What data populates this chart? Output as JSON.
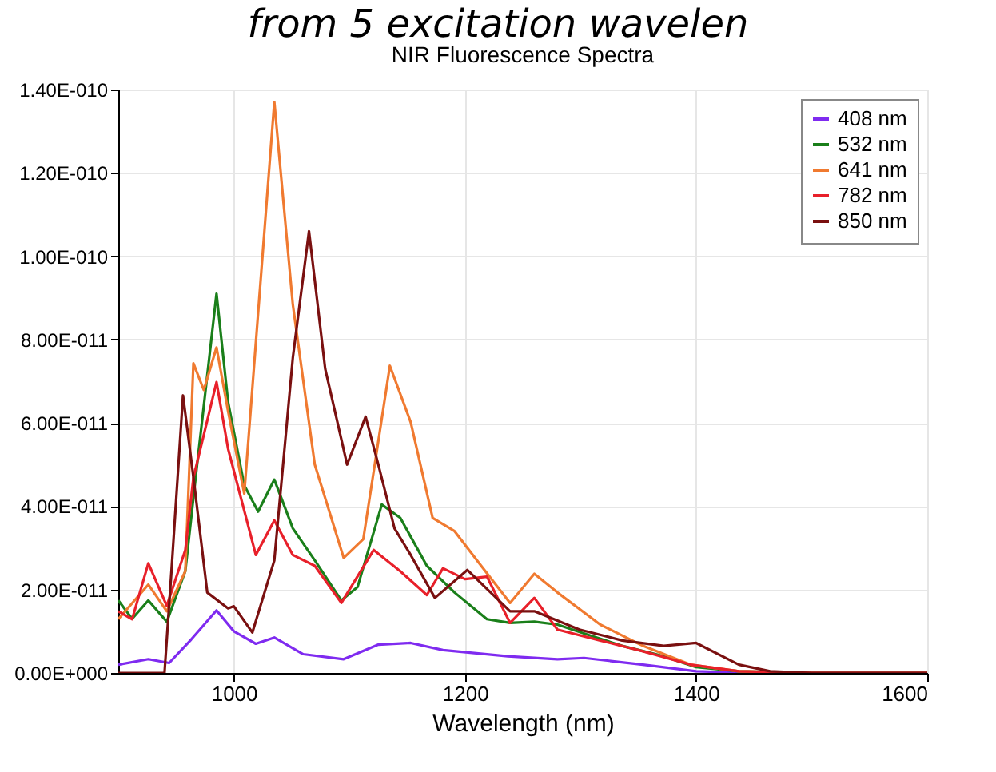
{
  "chart_data": {
    "type": "line",
    "title": "from 5 excitation wavelen",
    "subtitle": "NIR Fluorescence Spectra",
    "xlabel": "Wavelength (nm)",
    "xlim": [
      900,
      1600
    ],
    "xticks": [
      1000,
      1200,
      1400,
      1600
    ],
    "ylim": [
      0,
      1.4e-10
    ],
    "yticks": [
      {
        "value": 0,
        "label": "0.00E+000"
      },
      {
        "value": 2e-11,
        "label": "2.00E-011"
      },
      {
        "value": 4e-11,
        "label": "4.00E-011"
      },
      {
        "value": 6e-11,
        "label": "6.00E-011"
      },
      {
        "value": 8e-11,
        "label": "8.00E-011"
      },
      {
        "value": 1e-10,
        "label": "1.00E-010"
      },
      {
        "value": 1.2e-10,
        "label": "1.20E-010"
      },
      {
        "value": 1.4e-10,
        "label": "1.40E-010"
      }
    ],
    "grid": true,
    "legend": "top right",
    "series": [
      {
        "name": "408 nm",
        "color": "#7f2bf0",
        "x": [
          900,
          926,
          944,
          963,
          985,
          1000,
          1019,
          1035,
          1060,
          1095,
          1125,
          1153,
          1181,
          1237,
          1280,
          1303,
          1354,
          1400,
          1450,
          1600
        ],
        "values": [
          2e-12,
          3.3e-12,
          2.4e-12,
          8e-12,
          1.5e-11,
          1e-11,
          7e-12,
          8.5e-12,
          4.5e-12,
          3.3e-12,
          6.8e-12,
          7.2e-12,
          5.5e-12,
          4e-12,
          3.3e-12,
          3.6e-12,
          2e-12,
          4e-13,
          0,
          0
        ]
      },
      {
        "name": "532 nm",
        "color": "#1a7f1a",
        "x": [
          900,
          912,
          926,
          942,
          958,
          967,
          985,
          995,
          1009,
          1021,
          1035,
          1051,
          1070,
          1093,
          1107,
          1128,
          1144,
          1167,
          1191,
          1219,
          1239,
          1260,
          1280,
          1308,
          1336,
          1372,
          1400,
          1437,
          1500,
          1600
        ],
        "values": [
          1.74e-11,
          1.3e-11,
          1.74e-11,
          1.23e-11,
          2.44e-11,
          4.7e-11,
          9.1e-11,
          6.5e-11,
          4.5e-11,
          3.87e-11,
          4.64e-11,
          3.47e-11,
          2.7e-11,
          1.74e-11,
          2.06e-11,
          4.04e-11,
          3.72e-11,
          2.57e-11,
          1.93e-11,
          1.29e-11,
          1.2e-11,
          1.23e-11,
          1.16e-11,
          9e-12,
          6.5e-12,
          4e-12,
          1.4e-12,
          4e-13,
          0,
          0
        ]
      },
      {
        "name": "641 nm",
        "color": "#f07a30",
        "x": [
          900,
          926,
          942,
          958,
          965,
          974,
          985,
          995,
          1009,
          1035,
          1051,
          1070,
          1095,
          1112,
          1135,
          1153,
          1172,
          1191,
          1214,
          1239,
          1260,
          1280,
          1317,
          1354,
          1395,
          1437,
          1500,
          1600
        ],
        "values": [
          1.29e-11,
          2.12e-11,
          1.48e-11,
          2.44e-11,
          7.43e-11,
          6.79e-11,
          7.81e-11,
          6.28e-11,
          4.3e-11,
          1.37e-10,
          8.84e-11,
          5e-11,
          2.76e-11,
          3.21e-11,
          7.37e-11,
          6.02e-11,
          3.72e-11,
          3.4e-11,
          2.57e-11,
          1.68e-11,
          2.38e-11,
          1.93e-11,
          1.16e-11,
          6.5e-12,
          2e-12,
          4e-13,
          0,
          0
        ]
      },
      {
        "name": "782 nm",
        "color": "#e8202a",
        "x": [
          900,
          912,
          926,
          942,
          958,
          965,
          985,
          995,
          1019,
          1035,
          1051,
          1070,
          1093,
          1121,
          1144,
          1167,
          1181,
          1200,
          1219,
          1239,
          1260,
          1280,
          1317,
          1354,
          1395,
          1437,
          1500,
          1600
        ],
        "values": [
          1.48e-11,
          1.29e-11,
          2.63e-11,
          1.61e-11,
          2.95e-11,
          4.68e-11,
          6.98e-11,
          5.38e-11,
          2.83e-11,
          3.66e-11,
          2.83e-11,
          2.57e-11,
          1.68e-11,
          2.95e-11,
          2.44e-11,
          1.87e-11,
          2.51e-11,
          2.25e-11,
          2.31e-11,
          1.2e-11,
          1.8e-11,
          1.04e-11,
          7.8e-12,
          5.2e-12,
          2e-12,
          4e-13,
          0,
          0
        ]
      },
      {
        "name": "850 nm",
        "color": "#7a1010",
        "x": [
          900,
          940,
          946,
          956,
          965,
          977,
          995,
          1000,
          1016,
          1035,
          1051,
          1065,
          1079,
          1098,
          1114,
          1125,
          1139,
          1153,
          1174,
          1202,
          1239,
          1260,
          1299,
          1336,
          1372,
          1400,
          1437,
          1464,
          1500,
          1600
        ],
        "values": [
          0,
          0,
          2.44e-11,
          6.66e-11,
          4.7e-11,
          1.93e-11,
          1.55e-11,
          1.6e-11,
          9.7e-12,
          2.7e-11,
          7.56e-11,
          1.06e-10,
          7.3e-11,
          5e-11,
          6.15e-11,
          5e-11,
          3.47e-11,
          2.83e-11,
          1.8e-11,
          2.47e-11,
          1.48e-11,
          1.48e-11,
          1.04e-11,
          7.8e-12,
          6.5e-12,
          7.2e-12,
          2e-12,
          4e-13,
          0,
          0
        ]
      }
    ]
  }
}
